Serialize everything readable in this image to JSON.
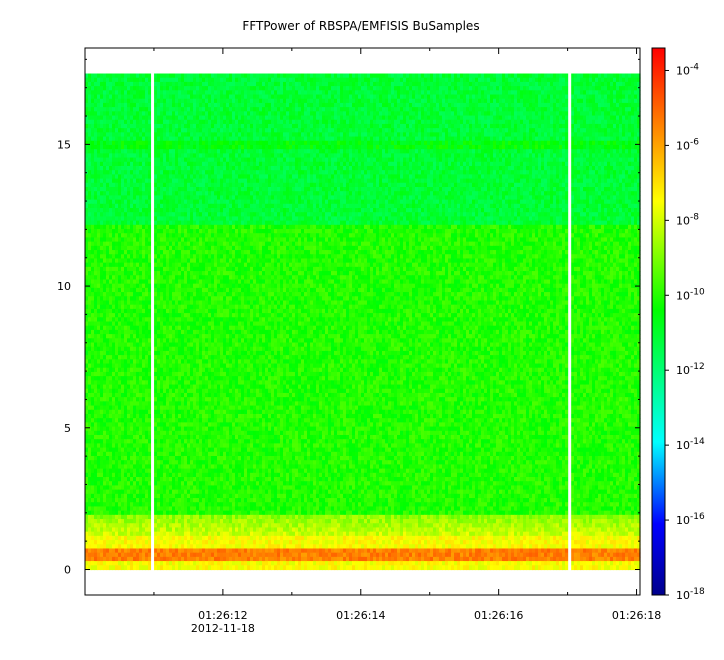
{
  "chart_data": {
    "type": "heatmap",
    "title": "FFTPower of RBSPA/EMFISIS  BuSamples",
    "x_ticks": [
      {
        "label": "01:26:12",
        "sublabel": "2012-11-18",
        "t": 12
      },
      {
        "label": "01:26:14",
        "sublabel": "",
        "t": 14
      },
      {
        "label": "01:26:16",
        "sublabel": "",
        "t": 16
      },
      {
        "label": "01:26:18",
        "sublabel": "",
        "t": 18
      }
    ],
    "x_minor_ticks": [
      11,
      13,
      15,
      17
    ],
    "xlim_seconds_after_01_26_00": [
      10.0,
      18.05
    ],
    "y_ticks": [
      0,
      5,
      10,
      15
    ],
    "ylim": [
      -0.9,
      18.4
    ],
    "data_frequency_range": [
      0,
      17.5
    ],
    "white_gaps_seconds_after_01_26_00": [
      10.98,
      17.03
    ],
    "features": {
      "low_band_max": 2.0,
      "upper_band_start": 12.2,
      "line_at": 15.0
    },
    "colorbar": {
      "scale": "log",
      "range_exponent": [
        -18,
        -3.4
      ],
      "tick_exponents": [
        -4,
        -6,
        -8,
        -10,
        -12,
        -14,
        -16,
        -18
      ],
      "tick_labels": [
        "10-4",
        "10-6",
        "10-8",
        "10-10",
        "10-12",
        "10-14",
        "10-16",
        "10-18"
      ],
      "colors": [
        "#00008c",
        "#0000ff",
        "#00ffff",
        "#00ff00",
        "#ffff00",
        "#ff8000",
        "#ff0000"
      ]
    }
  }
}
